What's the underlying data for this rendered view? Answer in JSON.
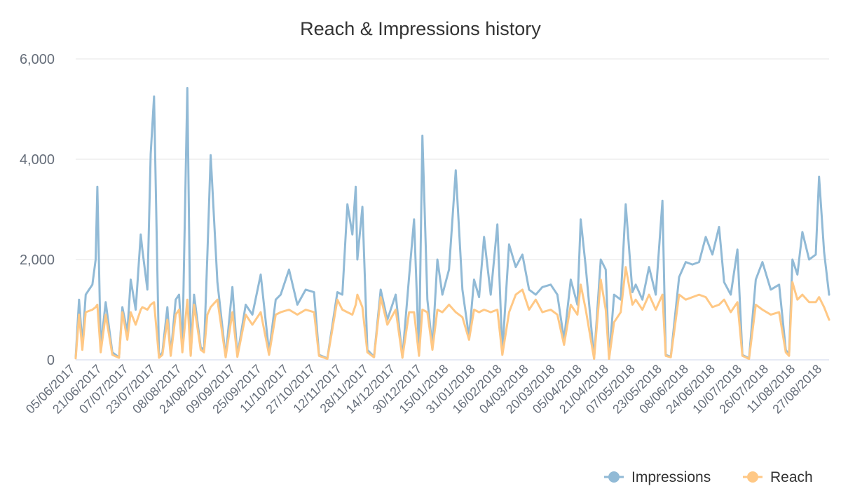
{
  "chart_data": {
    "type": "line",
    "title": "Reach & Impressions history",
    "xlabel": "",
    "ylabel": "",
    "ylim": [
      0,
      6000
    ],
    "yticks": [
      0,
      2000,
      4000,
      6000
    ],
    "ytick_labels": [
      "0",
      "2,000",
      "4,000",
      "6,000"
    ],
    "x_start": "05/06/2017",
    "x_end": "31/08/2018",
    "xtick_labels": [
      "05/06/2017",
      "21/06/2017",
      "07/07/2017",
      "23/07/2017",
      "08/08/2017",
      "24/08/2017",
      "09/09/2017",
      "25/09/2017",
      "11/10/2017",
      "27/10/2017",
      "12/11/2017",
      "28/11/2017",
      "14/12/2017",
      "30/12/2017",
      "15/01/2018",
      "31/01/2018",
      "16/02/2018",
      "04/03/2018",
      "20/03/2018",
      "05/04/2018",
      "21/04/2018",
      "07/05/2018",
      "23/05/2018",
      "08/06/2018",
      "24/06/2018",
      "10/07/2018",
      "26/07/2018",
      "11/08/2018",
      "27/08/2018"
    ],
    "grid": true,
    "legend_position": "bottom-right",
    "series": [
      {
        "name": "Impressions",
        "color": "#91bad6",
        "x": [
          "05/06/2017",
          "07/06/2017",
          "09/06/2017",
          "11/06/2017",
          "15/06/2017",
          "17/06/2017",
          "18/06/2017",
          "20/06/2017",
          "23/06/2017",
          "27/06/2017",
          "01/07/2017",
          "03/07/2017",
          "06/07/2017",
          "08/07/2017",
          "11/07/2017",
          "14/07/2017",
          "15/07/2017",
          "18/07/2017",
          "20/07/2017",
          "22/07/2017",
          "25/07/2017",
          "27/07/2017",
          "30/07/2017",
          "01/08/2017",
          "04/08/2017",
          "06/08/2017",
          "08/08/2017",
          "11/08/2017",
          "13/08/2017",
          "15/08/2017",
          "19/08/2017",
          "21/08/2017",
          "23/08/2017",
          "25/08/2017",
          "29/08/2017",
          "03/09/2017",
          "07/09/2017",
          "10/09/2017",
          "15/09/2017",
          "19/09/2017",
          "24/09/2017",
          "29/09/2017",
          "03/10/2017",
          "06/10/2017",
          "11/10/2017",
          "16/10/2017",
          "21/10/2017",
          "26/10/2017",
          "29/10/2017",
          "03/11/2017",
          "09/11/2017",
          "12/11/2017",
          "15/11/2017",
          "18/11/2017",
          "20/11/2017",
          "21/11/2017",
          "24/11/2017",
          "27/11/2017",
          "01/12/2017",
          "05/12/2017",
          "09/12/2017",
          "14/12/2017",
          "18/12/2017",
          "22/12/2017",
          "25/12/2017",
          "28/12/2017",
          "30/12/2017",
          "02/01/2018",
          "05/01/2018",
          "08/01/2018",
          "11/01/2018",
          "15/01/2018",
          "19/01/2018",
          "23/01/2018",
          "27/01/2018",
          "30/01/2018",
          "02/02/2018",
          "05/02/2018",
          "09/02/2018",
          "13/02/2018",
          "16/02/2018",
          "20/02/2018",
          "24/02/2018",
          "28/02/2018",
          "04/03/2018",
          "08/03/2018",
          "12/03/2018",
          "17/03/2018",
          "21/03/2018",
          "25/03/2018",
          "29/03/2018",
          "02/04/2018",
          "04/04/2018",
          "07/04/2018",
          "12/04/2018",
          "16/04/2018",
          "19/04/2018",
          "21/04/2018",
          "24/04/2018",
          "28/04/2018",
          "01/05/2018",
          "05/05/2018",
          "07/05/2018",
          "11/05/2018",
          "15/05/2018",
          "19/05/2018",
          "23/05/2018",
          "25/05/2018",
          "28/05/2018",
          "02/06/2018",
          "06/06/2018",
          "10/06/2018",
          "14/06/2018",
          "18/06/2018",
          "22/06/2018",
          "26/06/2018",
          "29/06/2018",
          "03/07/2018",
          "07/07/2018",
          "10/07/2018",
          "14/07/2018",
          "18/07/2018",
          "22/07/2018",
          "27/07/2018",
          "01/08/2018",
          "05/08/2018",
          "07/08/2018",
          "09/08/2018",
          "12/08/2018",
          "15/08/2018",
          "19/08/2018",
          "23/08/2018",
          "25/08/2018",
          "28/08/2018",
          "31/08/2018"
        ],
        "values": [
          50,
          1200,
          300,
          1300,
          1500,
          2000,
          3450,
          250,
          1150,
          150,
          50,
          1050,
          550,
          1600,
          1000,
          2500,
          2200,
          1400,
          4100,
          5250,
          50,
          150,
          1050,
          100,
          1200,
          1300,
          200,
          5420,
          100,
          1300,
          250,
          200,
          2100,
          4080,
          1550,
          60,
          1450,
          80,
          1100,
          900,
          1700,
          150,
          1200,
          1300,
          1800,
          1100,
          1400,
          1350,
          100,
          30,
          1350,
          1300,
          3100,
          2500,
          3450,
          2000,
          3050,
          200,
          60,
          1400,
          800,
          1300,
          50,
          1650,
          2800,
          100,
          4470,
          1200,
          250,
          2000,
          1300,
          1800,
          3780,
          1400,
          450,
          1600,
          1250,
          2450,
          1300,
          2700,
          150,
          2300,
          1850,
          2100,
          1400,
          1300,
          1450,
          1500,
          1300,
          400,
          1600,
          1100,
          2800,
          1850,
          30,
          2000,
          1800,
          30,
          1300,
          1200,
          3100,
          1350,
          1500,
          1200,
          1850,
          1300,
          3170,
          100,
          60,
          1650,
          1950,
          1900,
          1950,
          2450,
          2100,
          2650,
          1550,
          1300,
          2200,
          100,
          30,
          1600,
          1950,
          1400,
          1500,
          200,
          100,
          2000,
          1700,
          2550,
          2000,
          2100,
          3650,
          2150,
          1300
        ]
      },
      {
        "name": "Reach",
        "color": "#ffc885",
        "x": [
          "05/06/2017",
          "07/06/2017",
          "09/06/2017",
          "11/06/2017",
          "15/06/2017",
          "17/06/2017",
          "18/06/2017",
          "20/06/2017",
          "23/06/2017",
          "27/06/2017",
          "01/07/2017",
          "03/07/2017",
          "06/07/2017",
          "08/07/2017",
          "11/07/2017",
          "14/07/2017",
          "15/07/2017",
          "18/07/2017",
          "20/07/2017",
          "22/07/2017",
          "25/07/2017",
          "27/07/2017",
          "30/07/2017",
          "01/08/2017",
          "04/08/2017",
          "06/08/2017",
          "08/08/2017",
          "11/08/2017",
          "13/08/2017",
          "15/08/2017",
          "19/08/2017",
          "21/08/2017",
          "23/08/2017",
          "25/08/2017",
          "29/08/2017",
          "03/09/2017",
          "07/09/2017",
          "10/09/2017",
          "15/09/2017",
          "19/09/2017",
          "24/09/2017",
          "29/09/2017",
          "03/10/2017",
          "06/10/2017",
          "11/10/2017",
          "16/10/2017",
          "21/10/2017",
          "26/10/2017",
          "29/10/2017",
          "03/11/2017",
          "09/11/2017",
          "12/11/2017",
          "15/11/2017",
          "18/11/2017",
          "20/11/2017",
          "21/11/2017",
          "24/11/2017",
          "27/11/2017",
          "01/12/2017",
          "05/12/2017",
          "09/12/2017",
          "14/12/2017",
          "18/12/2017",
          "22/12/2017",
          "25/12/2017",
          "28/12/2017",
          "30/12/2017",
          "02/01/2018",
          "05/01/2018",
          "08/01/2018",
          "11/01/2018",
          "15/01/2018",
          "19/01/2018",
          "23/01/2018",
          "27/01/2018",
          "30/01/2018",
          "02/02/2018",
          "05/02/2018",
          "09/02/2018",
          "13/02/2018",
          "16/02/2018",
          "20/02/2018",
          "24/02/2018",
          "28/02/2018",
          "04/03/2018",
          "08/03/2018",
          "12/03/2018",
          "17/03/2018",
          "21/03/2018",
          "25/03/2018",
          "29/03/2018",
          "02/04/2018",
          "04/04/2018",
          "07/04/2018",
          "12/04/2018",
          "16/04/2018",
          "19/04/2018",
          "21/04/2018",
          "24/04/2018",
          "28/04/2018",
          "01/05/2018",
          "05/05/2018",
          "07/05/2018",
          "11/05/2018",
          "15/05/2018",
          "19/05/2018",
          "23/05/2018",
          "25/05/2018",
          "28/05/2018",
          "02/06/2018",
          "06/06/2018",
          "10/06/2018",
          "14/06/2018",
          "18/06/2018",
          "22/06/2018",
          "26/06/2018",
          "29/06/2018",
          "03/07/2018",
          "07/07/2018",
          "10/07/2018",
          "14/07/2018",
          "18/07/2018",
          "22/07/2018",
          "27/07/2018",
          "01/08/2018",
          "05/08/2018",
          "07/08/2018",
          "09/08/2018",
          "12/08/2018",
          "15/08/2018",
          "19/08/2018",
          "23/08/2018",
          "25/08/2018",
          "28/08/2018",
          "31/08/2018"
        ],
        "values": [
          30,
          900,
          200,
          950,
          1000,
          1050,
          1100,
          150,
          900,
          100,
          40,
          950,
          400,
          950,
          700,
          1000,
          1050,
          1000,
          1100,
          1150,
          40,
          100,
          800,
          80,
          900,
          1000,
          150,
          1200,
          80,
          1100,
          200,
          150,
          900,
          1050,
          1200,
          50,
          950,
          60,
          900,
          700,
          950,
          100,
          900,
          950,
          1000,
          900,
          1000,
          950,
          80,
          20,
          1200,
          1000,
          950,
          900,
          1100,
          1300,
          1050,
          150,
          50,
          1250,
          700,
          1000,
          40,
          950,
          950,
          80,
          1000,
          950,
          200,
          1000,
          950,
          1100,
          950,
          850,
          400,
          1000,
          950,
          1000,
          950,
          1000,
          100,
          950,
          1300,
          1400,
          1000,
          1200,
          950,
          1000,
          900,
          300,
          1100,
          900,
          1500,
          1000,
          20,
          1600,
          1000,
          20,
          750,
          950,
          1850,
          1100,
          1200,
          1000,
          1300,
          1000,
          1300,
          80,
          50,
          1300,
          1200,
          1250,
          1300,
          1250,
          1050,
          1100,
          1200,
          950,
          1150,
          80,
          20,
          1100,
          1000,
          900,
          950,
          150,
          80,
          1550,
          1200,
          1300,
          1150,
          1150,
          1250,
          1050,
          800
        ]
      }
    ]
  }
}
